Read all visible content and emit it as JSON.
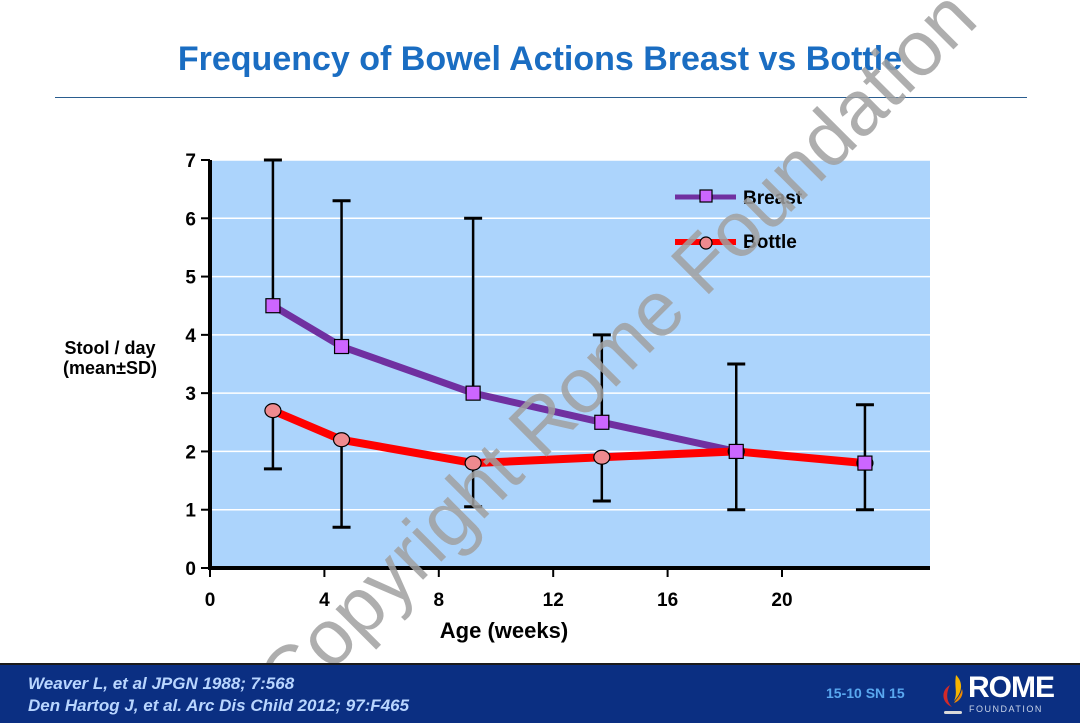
{
  "slide": {
    "title": "Frequency of Bowel Actions Breast vs Bottle",
    "watermark": "Copyright Rome Foundation",
    "footer": {
      "references": [
        "Weaver L, et al JPGN 1988; 7:568",
        "Den Hartog J, et al. Arc Dis Child 2012; 97:F465"
      ],
      "slide_code": "15-10  SN 15",
      "logo_text": "ROME",
      "logo_subtext": "FOUNDATION"
    }
  },
  "colors": {
    "title": "#1a6dc2",
    "plot_bg": "#acd4fc",
    "breast_line": "#7030a0",
    "breast_marker": "#cc66ff",
    "bottle_line": "#ff0000",
    "bottle_marker": "#ef8a8f",
    "footer_bg": "#0b2f82"
  },
  "chart_data": {
    "type": "line",
    "title": "Frequency of Bowel Actions Breast vs Bottle",
    "xlabel": "Age (weeks)",
    "ylabel": "Stool / day\n(mean ± SD)",
    "ylabel_lines": [
      "Stool / day",
      "(mean±SD)"
    ],
    "xlim": [
      0,
      25
    ],
    "ylim": [
      0,
      7
    ],
    "xticks": [
      0,
      4,
      8,
      12,
      16,
      20
    ],
    "yticks": [
      0,
      1,
      2,
      3,
      4,
      5,
      6,
      7
    ],
    "grid": "horizontal",
    "legend_position": "top-right",
    "x": [
      2.2,
      4.6,
      9.2,
      13.7,
      18.4,
      22.9
    ],
    "series": [
      {
        "name": "Breast",
        "marker": "square",
        "values": [
          4.5,
          3.8,
          3.0,
          2.5,
          2.0,
          1.8
        ],
        "error_upper": [
          7.0,
          6.3,
          6.0,
          4.0,
          3.5,
          2.8
        ]
      },
      {
        "name": "Bottle",
        "marker": "circle",
        "values": [
          2.7,
          2.2,
          1.8,
          1.9,
          2.0,
          1.8
        ],
        "error_lower": [
          1.7,
          0.7,
          1.05,
          1.15,
          1.0,
          1.0
        ]
      }
    ]
  }
}
